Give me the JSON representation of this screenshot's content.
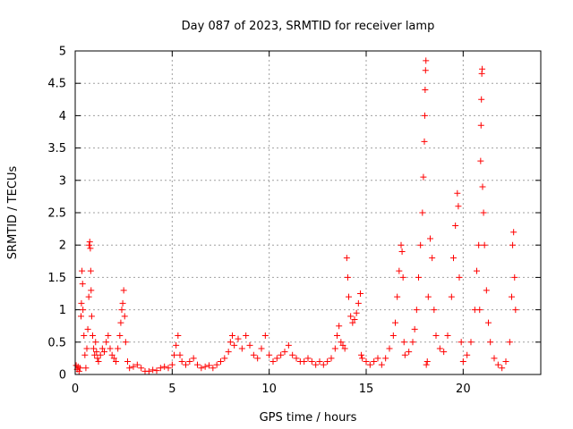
{
  "chart_data": {
    "type": "scatter",
    "title": "Day 087 of 2023, SRMTID for receiver lamp",
    "xlabel": "GPS time / hours",
    "ylabel": "SRMTID / TECUs",
    "xlim": [
      0,
      24
    ],
    "ylim": [
      0,
      5
    ],
    "x_ticks": [
      0,
      5,
      10,
      15,
      20
    ],
    "y_ticks": [
      0,
      0.5,
      1,
      1.5,
      2,
      2.5,
      3,
      3.5,
      4,
      4.5,
      5
    ],
    "x_tick_labels": [
      "0",
      "5",
      "10",
      "15",
      "20"
    ],
    "y_tick_labels": [
      "0",
      "0.5",
      "1",
      "1.5",
      "2",
      "2.5",
      "3",
      "3.5",
      "4",
      "4.5",
      "5"
    ],
    "grid": true,
    "marker": "plus",
    "color": "#ff0000",
    "series": [
      {
        "name": "SRMTID",
        "points": [
          [
            0.05,
            0.14
          ],
          [
            0.1,
            0.08
          ],
          [
            0.15,
            0.12
          ],
          [
            0.2,
            0.05
          ],
          [
            0.25,
            0.1
          ],
          [
            0.3,
            0.9
          ],
          [
            0.32,
            1.1
          ],
          [
            0.35,
            1.6
          ],
          [
            0.38,
            1.4
          ],
          [
            0.4,
            1.0
          ],
          [
            0.45,
            0.6
          ],
          [
            0.5,
            0.3
          ],
          [
            0.55,
            0.1
          ],
          [
            0.6,
            0.4
          ],
          [
            0.65,
            0.7
          ],
          [
            0.7,
            1.2
          ],
          [
            0.72,
            2.0
          ],
          [
            0.75,
            2.05
          ],
          [
            0.78,
            1.95
          ],
          [
            0.8,
            1.6
          ],
          [
            0.82,
            1.3
          ],
          [
            0.85,
            0.9
          ],
          [
            0.9,
            0.6
          ],
          [
            0.95,
            0.4
          ],
          [
            1.0,
            0.3
          ],
          [
            1.05,
            0.5
          ],
          [
            1.1,
            0.35
          ],
          [
            1.15,
            0.25
          ],
          [
            1.2,
            0.2
          ],
          [
            1.3,
            0.3
          ],
          [
            1.4,
            0.4
          ],
          [
            1.5,
            0.35
          ],
          [
            1.6,
            0.5
          ],
          [
            1.7,
            0.6
          ],
          [
            1.8,
            0.4
          ],
          [
            1.9,
            0.3
          ],
          [
            2.0,
            0.25
          ],
          [
            2.1,
            0.2
          ],
          [
            2.2,
            0.4
          ],
          [
            2.3,
            0.6
          ],
          [
            2.35,
            0.8
          ],
          [
            2.4,
            1.0
          ],
          [
            2.45,
            1.1
          ],
          [
            2.5,
            1.3
          ],
          [
            2.55,
            0.9
          ],
          [
            2.6,
            0.5
          ],
          [
            2.7,
            0.2
          ],
          [
            2.8,
            0.1
          ],
          [
            3.0,
            0.12
          ],
          [
            3.2,
            0.15
          ],
          [
            3.4,
            0.1
          ],
          [
            3.6,
            0.05
          ],
          [
            3.8,
            0.05
          ],
          [
            4.0,
            0.07
          ],
          [
            4.2,
            0.06
          ],
          [
            4.4,
            0.1
          ],
          [
            4.6,
            0.12
          ],
          [
            4.8,
            0.1
          ],
          [
            5.0,
            0.15
          ],
          [
            5.1,
            0.3
          ],
          [
            5.2,
            0.45
          ],
          [
            5.3,
            0.6
          ],
          [
            5.4,
            0.3
          ],
          [
            5.5,
            0.2
          ],
          [
            5.7,
            0.15
          ],
          [
            5.9,
            0.2
          ],
          [
            6.1,
            0.25
          ],
          [
            6.3,
            0.15
          ],
          [
            6.5,
            0.1
          ],
          [
            6.7,
            0.12
          ],
          [
            6.9,
            0.14
          ],
          [
            7.1,
            0.1
          ],
          [
            7.3,
            0.15
          ],
          [
            7.5,
            0.2
          ],
          [
            7.7,
            0.25
          ],
          [
            7.9,
            0.35
          ],
          [
            8.0,
            0.5
          ],
          [
            8.1,
            0.6
          ],
          [
            8.2,
            0.45
          ],
          [
            8.4,
            0.55
          ],
          [
            8.6,
            0.4
          ],
          [
            8.8,
            0.6
          ],
          [
            9.0,
            0.45
          ],
          [
            9.2,
            0.3
          ],
          [
            9.4,
            0.25
          ],
          [
            9.6,
            0.4
          ],
          [
            9.8,
            0.6
          ],
          [
            10.0,
            0.3
          ],
          [
            10.2,
            0.2
          ],
          [
            10.4,
            0.25
          ],
          [
            10.6,
            0.3
          ],
          [
            10.8,
            0.35
          ],
          [
            11.0,
            0.45
          ],
          [
            11.2,
            0.3
          ],
          [
            11.4,
            0.25
          ],
          [
            11.6,
            0.2
          ],
          [
            11.8,
            0.2
          ],
          [
            12.0,
            0.25
          ],
          [
            12.2,
            0.2
          ],
          [
            12.4,
            0.15
          ],
          [
            12.6,
            0.2
          ],
          [
            12.8,
            0.15
          ],
          [
            13.0,
            0.2
          ],
          [
            13.2,
            0.25
          ],
          [
            13.4,
            0.4
          ],
          [
            13.5,
            0.6
          ],
          [
            13.6,
            0.75
          ],
          [
            13.7,
            0.5
          ],
          [
            13.8,
            0.45
          ],
          [
            13.9,
            0.4
          ],
          [
            14.0,
            1.8
          ],
          [
            14.05,
            1.5
          ],
          [
            14.1,
            1.2
          ],
          [
            14.2,
            0.9
          ],
          [
            14.3,
            0.8
          ],
          [
            14.4,
            0.85
          ],
          [
            14.5,
            0.95
          ],
          [
            14.6,
            1.1
          ],
          [
            14.7,
            1.25
          ],
          [
            14.75,
            0.3
          ],
          [
            14.8,
            0.25
          ],
          [
            15.0,
            0.2
          ],
          [
            15.2,
            0.15
          ],
          [
            15.4,
            0.2
          ],
          [
            15.6,
            0.25
          ],
          [
            15.8,
            0.15
          ],
          [
            16.0,
            0.25
          ],
          [
            16.2,
            0.4
          ],
          [
            16.4,
            0.6
          ],
          [
            16.5,
            0.8
          ],
          [
            16.6,
            1.2
          ],
          [
            16.7,
            1.6
          ],
          [
            16.8,
            2.0
          ],
          [
            16.85,
            1.9
          ],
          [
            16.9,
            1.5
          ],
          [
            16.95,
            0.5
          ],
          [
            17.0,
            0.3
          ],
          [
            17.2,
            0.35
          ],
          [
            17.4,
            0.5
          ],
          [
            17.5,
            0.7
          ],
          [
            17.6,
            1.0
          ],
          [
            17.7,
            1.5
          ],
          [
            17.8,
            2.0
          ],
          [
            17.9,
            2.5
          ],
          [
            17.95,
            3.05
          ],
          [
            18.0,
            3.6
          ],
          [
            18.02,
            4.0
          ],
          [
            18.04,
            4.4
          ],
          [
            18.06,
            4.7
          ],
          [
            18.08,
            4.85
          ],
          [
            18.1,
            0.15
          ],
          [
            18.15,
            0.2
          ],
          [
            18.2,
            1.2
          ],
          [
            18.3,
            2.1
          ],
          [
            18.4,
            1.8
          ],
          [
            18.5,
            1.0
          ],
          [
            18.6,
            0.6
          ],
          [
            18.8,
            0.4
          ],
          [
            19.0,
            0.35
          ],
          [
            19.2,
            0.6
          ],
          [
            19.4,
            1.2
          ],
          [
            19.5,
            1.8
          ],
          [
            19.6,
            2.3
          ],
          [
            19.7,
            2.8
          ],
          [
            19.75,
            2.6
          ],
          [
            19.8,
            1.5
          ],
          [
            19.9,
            0.5
          ],
          [
            20.0,
            0.2
          ],
          [
            20.2,
            0.3
          ],
          [
            20.4,
            0.5
          ],
          [
            20.6,
            1.0
          ],
          [
            20.7,
            1.6
          ],
          [
            20.8,
            2.0
          ],
          [
            20.85,
            1.0
          ],
          [
            20.9,
            3.3
          ],
          [
            20.92,
            3.85
          ],
          [
            20.94,
            4.25
          ],
          [
            20.96,
            4.65
          ],
          [
            20.98,
            4.72
          ],
          [
            21.0,
            2.9
          ],
          [
            21.05,
            2.5
          ],
          [
            21.1,
            2.0
          ],
          [
            21.2,
            1.3
          ],
          [
            21.3,
            0.8
          ],
          [
            21.4,
            0.5
          ],
          [
            21.6,
            0.25
          ],
          [
            21.8,
            0.15
          ],
          [
            22.0,
            0.1
          ],
          [
            22.2,
            0.2
          ],
          [
            22.4,
            0.5
          ],
          [
            22.5,
            1.2
          ],
          [
            22.55,
            2.0
          ],
          [
            22.6,
            2.2
          ],
          [
            22.65,
            1.5
          ],
          [
            22.7,
            1.0
          ]
        ]
      }
    ]
  }
}
